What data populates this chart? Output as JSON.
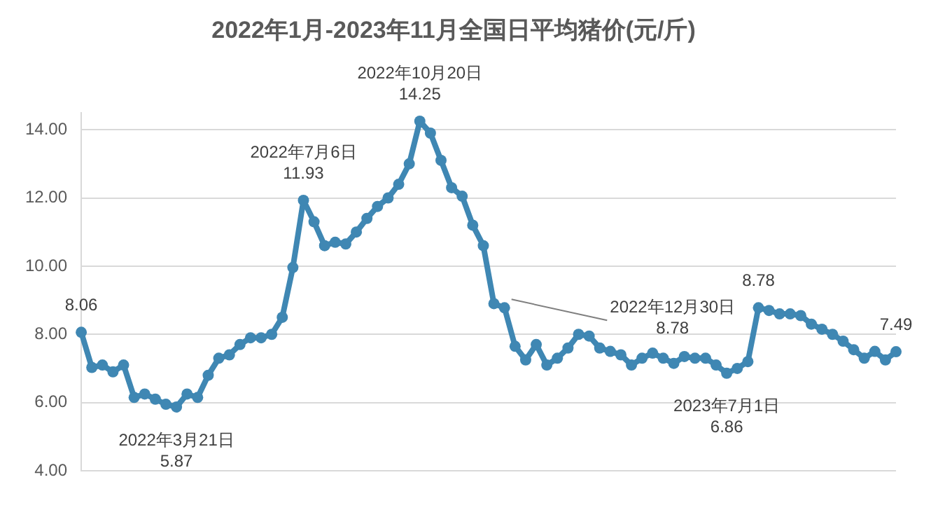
{
  "chart_data": {
    "type": "line",
    "title": "2022年1月-2023年11月全国日平均猪价(元/斤)",
    "categories": [
      null,
      null,
      null,
      null,
      null,
      null,
      null,
      null,
      null,
      null,
      null,
      null,
      null,
      null,
      null,
      null,
      null,
      null,
      null,
      null,
      null,
      null,
      null,
      null,
      null,
      null,
      null,
      null,
      null,
      null,
      null,
      null,
      null,
      null,
      null,
      null,
      null,
      null,
      null,
      null,
      null,
      null,
      null,
      null,
      null,
      null,
      null,
      null,
      null,
      null,
      null,
      null,
      null,
      null,
      null,
      null,
      null,
      null,
      null,
      null,
      null,
      null,
      null,
      null,
      null,
      null,
      null,
      null,
      null,
      null,
      null,
      null,
      null,
      null,
      null,
      null,
      null,
      null
    ],
    "series": [
      {
        "color": "#3f87b3",
        "values": [
          8.06,
          7.03,
          7.1,
          6.9,
          7.1,
          6.15,
          6.25,
          6.1,
          5.95,
          5.87,
          6.25,
          6.15,
          6.8,
          7.3,
          7.4,
          7.7,
          7.9,
          7.9,
          8.0,
          8.5,
          9.96,
          11.93,
          11.3,
          10.6,
          10.7,
          10.65,
          11.0,
          11.4,
          11.75,
          12.0,
          12.4,
          13.0,
          14.25,
          13.9,
          13.1,
          12.3,
          12.05,
          11.2,
          10.6,
          8.9,
          8.78,
          7.65,
          7.25,
          7.7,
          7.1,
          7.3,
          7.6,
          8.0,
          7.95,
          7.6,
          7.5,
          7.4,
          7.1,
          7.3,
          7.45,
          7.3,
          7.15,
          7.35,
          7.3,
          7.3,
          7.1,
          6.86,
          7.0,
          7.2,
          8.78,
          8.7,
          8.6,
          8.6,
          8.55,
          8.3,
          8.15,
          8.0,
          7.8,
          7.55,
          7.3,
          7.5,
          7.25,
          7.49
        ],
        "value_labels": [
          "8.06",
          null,
          null,
          null,
          null,
          null,
          null,
          null,
          null,
          "2022年3月21日\n5.87",
          null,
          null,
          null,
          null,
          null,
          null,
          null,
          null,
          null,
          null,
          null,
          "2022年7月6日\n11.93",
          null,
          null,
          null,
          null,
          null,
          null,
          null,
          null,
          null,
          null,
          "2022年10月20日\n14.25",
          null,
          null,
          null,
          null,
          null,
          null,
          null,
          "2022年12月30日\n8.78",
          null,
          null,
          null,
          null,
          null,
          null,
          null,
          null,
          null,
          null,
          null,
          null,
          null,
          null,
          null,
          null,
          null,
          null,
          null,
          null,
          "2023年7月1日\n6.86",
          null,
          null,
          "8.78",
          null,
          null,
          null,
          null,
          null,
          null,
          null,
          null,
          null,
          null,
          null,
          null,
          "7.49"
        ]
      }
    ],
    "ylim": [
      4,
      14.5
    ],
    "yticks": [
      {
        "value": 4,
        "label": "4.00"
      },
      {
        "value": 6,
        "label": "6.00"
      },
      {
        "value": 8,
        "label": "8.00"
      },
      {
        "value": 10,
        "label": "10.00"
      },
      {
        "value": 12,
        "label": "12.00"
      },
      {
        "value": 14,
        "label": "14.00"
      }
    ],
    "tick_labels": "y",
    "grid": "y",
    "marker": "circle",
    "legend": false
  }
}
